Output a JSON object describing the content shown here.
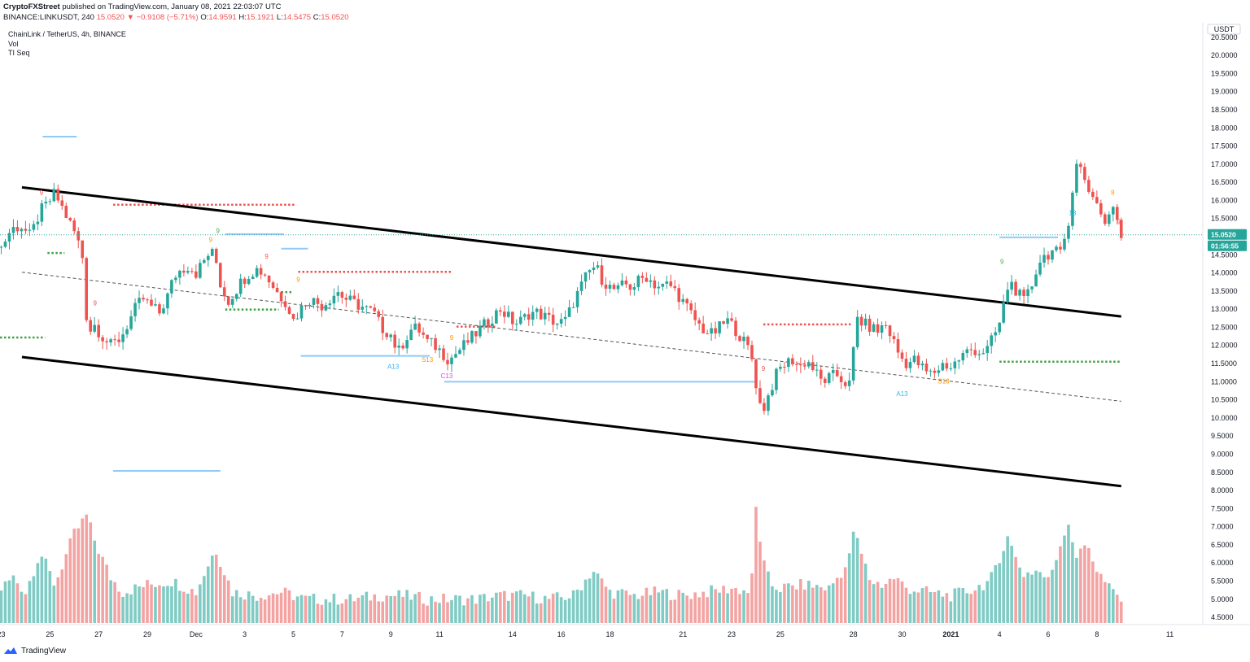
{
  "header": {
    "publisher": "CryptoFXStreet",
    "published_text": "published on TradingView.com, January 08, 2021 22:03:07 UTC",
    "symbol": "BINANCE:LINKUSDT, 240",
    "price": "15.0520",
    "change": "▼ −0.9108 (−5.71%)",
    "open_label": "O:",
    "open": "14.9591",
    "high_label": "H:",
    "high": "15.1921",
    "low_label": "L:",
    "low": "14.5475",
    "close_label": "C:",
    "close": "15.0520"
  },
  "legend": {
    "title": "ChainLink / TetherUS, 4h, BINANCE",
    "vol": "Vol",
    "indicator": "TI Seq"
  },
  "footer": {
    "brand": "TradingView"
  },
  "colors": {
    "up": "#26a69a",
    "down": "#ef5350",
    "vol_up": "#80cbc4",
    "vol_down": "#f4a3a3",
    "price_tag": "#26a69a",
    "axis": "#131722"
  },
  "chart_data": {
    "type": "candlestick",
    "symbol": "LINKUSDT",
    "timeframe": "4h",
    "currency": "USDT",
    "y_axis": {
      "labels": [
        "20.5000",
        "20.0000",
        "19.5000",
        "19.0000",
        "18.5000",
        "18.0000",
        "17.5000",
        "17.0000",
        "16.5000",
        "16.0000",
        "15.5000",
        "15.0000",
        "14.5000",
        "14.0000",
        "13.5000",
        "13.0000",
        "12.5000",
        "12.0000",
        "11.5000",
        "11.0000",
        "10.5000",
        "10.0000",
        "9.5000",
        "9.0000",
        "8.5000",
        "8.0000",
        "7.5000",
        "7.0000",
        "6.5000",
        "6.0000",
        "5.5000",
        "5.0000",
        "4.5000"
      ],
      "range": [
        4.3,
        20.9
      ]
    },
    "x_axis": {
      "ticks": [
        {
          "label": "23",
          "day": 23
        },
        {
          "label": "25",
          "day": 25
        },
        {
          "label": "27",
          "day": 27
        },
        {
          "label": "29",
          "day": 29
        },
        {
          "label": "Dec",
          "day": 31
        },
        {
          "label": "3",
          "day": 33
        },
        {
          "label": "5",
          "day": 35
        },
        {
          "label": "7",
          "day": 37
        },
        {
          "label": "9",
          "day": 39
        },
        {
          "label": "11",
          "day": 41
        },
        {
          "label": "14",
          "day": 44
        },
        {
          "label": "16",
          "day": 46
        },
        {
          "label": "18",
          "day": 48
        },
        {
          "label": "21",
          "day": 51
        },
        {
          "label": "23",
          "day": 53
        },
        {
          "label": "25",
          "day": 55
        },
        {
          "label": "28",
          "day": 58
        },
        {
          "label": "30",
          "day": 60
        },
        {
          "label": "2021",
          "day": 62
        },
        {
          "label": "4",
          "day": 64
        },
        {
          "label": "6",
          "day": 66
        },
        {
          "label": "8",
          "day": 68
        },
        {
          "label": "11",
          "day": 71
        }
      ],
      "day_range": [
        22.95,
        72.35
      ]
    },
    "price_path": [
      [
        23.0,
        14.7
      ],
      [
        23.4,
        15.2
      ],
      [
        23.8,
        15.3
      ],
      [
        24.2,
        15.0
      ],
      [
        24.6,
        15.7
      ],
      [
        24.9,
        15.9
      ],
      [
        25.2,
        16.2
      ],
      [
        25.5,
        15.8
      ],
      [
        25.8,
        15.4
      ],
      [
        26.1,
        15.0
      ],
      [
        26.35,
        14.4
      ],
      [
        26.55,
        12.3
      ],
      [
        26.8,
        12.6
      ],
      [
        27.0,
        12.4
      ],
      [
        27.2,
        12.2
      ],
      [
        27.5,
        12.0
      ],
      [
        27.9,
        12.2
      ],
      [
        28.2,
        12.6
      ],
      [
        28.5,
        13.0
      ],
      [
        28.8,
        13.3
      ],
      [
        29.1,
        13.1
      ],
      [
        29.5,
        12.9
      ],
      [
        29.8,
        13.3
      ],
      [
        30.1,
        13.9
      ],
      [
        30.4,
        14.1
      ],
      [
        30.7,
        14.2
      ],
      [
        31.0,
        14.0
      ],
      [
        31.3,
        14.3
      ],
      [
        31.6,
        14.6
      ],
      [
        31.8,
        14.4
      ],
      [
        32.0,
        13.7
      ],
      [
        32.3,
        13.2
      ],
      [
        32.6,
        13.5
      ],
      [
        32.9,
        13.8
      ],
      [
        33.2,
        14.0
      ],
      [
        33.5,
        14.1
      ],
      [
        33.8,
        14.0
      ],
      [
        34.1,
        13.7
      ],
      [
        34.4,
        13.4
      ],
      [
        34.7,
        13.2
      ],
      [
        35.0,
        12.7
      ],
      [
        35.3,
        13.0
      ],
      [
        35.6,
        13.3
      ],
      [
        35.9,
        13.2
      ],
      [
        36.2,
        13.1
      ],
      [
        36.5,
        13.3
      ],
      [
        36.8,
        13.5
      ],
      [
        37.1,
        13.3
      ],
      [
        37.4,
        13.2
      ],
      [
        37.7,
        13.1
      ],
      [
        38.0,
        13.0
      ],
      [
        38.3,
        12.9
      ],
      [
        38.6,
        12.5
      ],
      [
        39.0,
        12.3
      ],
      [
        39.3,
        11.8
      ],
      [
        39.6,
        12.2
      ],
      [
        39.9,
        12.5
      ],
      [
        40.2,
        12.4
      ],
      [
        40.5,
        12.1
      ],
      [
        40.8,
        12.0
      ],
      [
        41.1,
        11.8
      ],
      [
        41.4,
        11.6
      ],
      [
        41.7,
        11.8
      ],
      [
        42.0,
        12.0
      ],
      [
        42.3,
        12.2
      ],
      [
        42.6,
        12.4
      ],
      [
        42.9,
        12.6
      ],
      [
        43.2,
        12.8
      ],
      [
        43.5,
        13.0
      ],
      [
        43.8,
        12.8
      ],
      [
        44.1,
        12.6
      ],
      [
        44.4,
        12.7
      ],
      [
        44.7,
        12.9
      ],
      [
        45.0,
        12.9
      ],
      [
        45.3,
        12.8
      ],
      [
        45.6,
        12.7
      ],
      [
        45.9,
        12.6
      ],
      [
        46.2,
        12.7
      ],
      [
        46.5,
        13.2
      ],
      [
        46.8,
        13.6
      ],
      [
        47.1,
        14.0
      ],
      [
        47.4,
        14.2
      ],
      [
        47.7,
        13.8
      ],
      [
        48.0,
        13.6
      ],
      [
        48.3,
        13.5
      ],
      [
        48.6,
        13.7
      ],
      [
        48.9,
        13.6
      ],
      [
        49.2,
        13.8
      ],
      [
        49.5,
        13.9
      ],
      [
        49.8,
        13.7
      ],
      [
        50.1,
        13.6
      ],
      [
        50.4,
        13.7
      ],
      [
        50.7,
        13.5
      ],
      [
        51.0,
        13.2
      ],
      [
        51.3,
        12.9
      ],
      [
        51.6,
        12.6
      ],
      [
        51.9,
        12.4
      ],
      [
        52.2,
        12.3
      ],
      [
        52.5,
        12.5
      ],
      [
        52.8,
        12.7
      ],
      [
        53.1,
        12.5
      ],
      [
        53.4,
        12.2
      ],
      [
        53.7,
        11.9
      ],
      [
        53.9,
        11.5
      ],
      [
        54.1,
        10.4
      ],
      [
        54.35,
        10.3
      ],
      [
        54.6,
        10.8
      ],
      [
        54.9,
        11.3
      ],
      [
        55.2,
        11.5
      ],
      [
        55.5,
        11.6
      ],
      [
        55.8,
        11.4
      ],
      [
        56.1,
        11.6
      ],
      [
        56.4,
        11.3
      ],
      [
        56.7,
        11.0
      ],
      [
        57.0,
        11.1
      ],
      [
        57.3,
        11.2
      ],
      [
        57.6,
        11.0
      ],
      [
        57.9,
        10.9
      ],
      [
        58.1,
        12.8
      ],
      [
        58.4,
        12.6
      ],
      [
        58.7,
        12.5
      ],
      [
        59.0,
        12.4
      ],
      [
        59.3,
        12.6
      ],
      [
        59.6,
        12.2
      ],
      [
        59.9,
        11.7
      ],
      [
        60.2,
        11.5
      ],
      [
        60.5,
        11.6
      ],
      [
        60.8,
        11.4
      ],
      [
        61.1,
        11.2
      ],
      [
        61.4,
        11.3
      ],
      [
        61.7,
        11.5
      ],
      [
        62.0,
        11.4
      ],
      [
        62.3,
        11.6
      ],
      [
        62.6,
        11.8
      ],
      [
        62.9,
        11.9
      ],
      [
        63.2,
        11.8
      ],
      [
        63.5,
        11.9
      ],
      [
        63.8,
        12.3
      ],
      [
        64.0,
        12.6
      ],
      [
        64.2,
        13.2
      ],
      [
        64.4,
        13.8
      ],
      [
        64.7,
        13.5
      ],
      [
        65.0,
        13.2
      ],
      [
        65.3,
        13.6
      ],
      [
        65.6,
        14.3
      ],
      [
        65.9,
        14.5
      ],
      [
        66.2,
        14.6
      ],
      [
        66.5,
        14.5
      ],
      [
        66.8,
        15.3
      ],
      [
        67.0,
        16.3
      ],
      [
        67.2,
        17.1
      ],
      [
        67.5,
        16.6
      ],
      [
        67.8,
        16.1
      ],
      [
        68.0,
        16.0
      ],
      [
        68.3,
        15.3
      ],
      [
        68.6,
        15.8
      ],
      [
        68.9,
        15.4
      ],
      [
        69.0,
        15.05
      ]
    ],
    "volume_path": [
      [
        23.0,
        5.3
      ],
      [
        23.5,
        5.6
      ],
      [
        24.0,
        5.2
      ],
      [
        24.6,
        6.3
      ],
      [
        25.2,
        5.4
      ],
      [
        26.0,
        6.8
      ],
      [
        26.5,
        7.3
      ],
      [
        26.9,
        6.5
      ],
      [
        27.5,
        5.6
      ],
      [
        28.0,
        5.2
      ],
      [
        29.0,
        5.4
      ],
      [
        30.0,
        5.5
      ],
      [
        31.0,
        5.2
      ],
      [
        31.8,
        6.4
      ],
      [
        32.5,
        5.2
      ],
      [
        33.5,
        5.1
      ],
      [
        34.5,
        5.2
      ],
      [
        35.5,
        5.0
      ],
      [
        36.5,
        5.0
      ],
      [
        37.5,
        5.0
      ],
      [
        38.5,
        5.1
      ],
      [
        39.5,
        5.1
      ],
      [
        40.5,
        5.0
      ],
      [
        41.5,
        5.0
      ],
      [
        42.5,
        5.0
      ],
      [
        43.5,
        5.1
      ],
      [
        44.5,
        5.1
      ],
      [
        45.5,
        5.0
      ],
      [
        46.5,
        5.1
      ],
      [
        47.3,
        5.8
      ],
      [
        48.0,
        5.2
      ],
      [
        49.0,
        5.1
      ],
      [
        50.0,
        5.2
      ],
      [
        51.0,
        5.1
      ],
      [
        52.0,
        5.2
      ],
      [
        53.0,
        5.3
      ],
      [
        53.8,
        5.2
      ],
      [
        54.0,
        7.5
      ],
      [
        54.3,
        6.0
      ],
      [
        54.6,
        5.4
      ],
      [
        55.0,
        5.3
      ],
      [
        56.0,
        5.4
      ],
      [
        57.0,
        5.3
      ],
      [
        57.8,
        6.0
      ],
      [
        58.0,
        6.9
      ],
      [
        58.3,
        6.3
      ],
      [
        58.7,
        5.5
      ],
      [
        59.2,
        5.4
      ],
      [
        59.7,
        5.6
      ],
      [
        60.2,
        5.3
      ],
      [
        61.0,
        5.2
      ],
      [
        62.0,
        5.1
      ],
      [
        62.6,
        5.2
      ],
      [
        63.0,
        5.3
      ],
      [
        63.6,
        5.5
      ],
      [
        64.0,
        6.0
      ],
      [
        64.3,
        6.9
      ],
      [
        64.6,
        6.2
      ],
      [
        65.0,
        5.7
      ],
      [
        65.6,
        5.8
      ],
      [
        66.0,
        5.5
      ],
      [
        66.5,
        6.5
      ],
      [
        66.8,
        7.2
      ],
      [
        67.2,
        6.1
      ],
      [
        67.6,
        6.6
      ],
      [
        68.0,
        5.8
      ],
      [
        68.5,
        5.3
      ],
      [
        69.0,
        5.0
      ]
    ],
    "trendlines": [
      {
        "style": "solid",
        "from": [
          23.85,
          16.36
        ],
        "to": [
          69.0,
          12.8
        ]
      },
      {
        "style": "solid",
        "from": [
          23.85,
          11.68
        ],
        "to": [
          69.0,
          8.12
        ]
      },
      {
        "style": "dashed",
        "from": [
          23.85,
          14.02
        ],
        "to": [
          69.0,
          10.46
        ]
      }
    ],
    "red_dotted_levels": [
      {
        "from": 27.6,
        "to": 35.1,
        "price": 15.88
      },
      {
        "from": 35.2,
        "to": 41.5,
        "price": 14.03
      },
      {
        "from": 41.7,
        "to": 43.3,
        "price": 12.52
      },
      {
        "from": 54.3,
        "to": 57.9,
        "price": 12.58
      }
    ],
    "green_dotted_levels": [
      {
        "from": 22.95,
        "to": 24.8,
        "price": 12.22
      },
      {
        "from": 24.9,
        "to": 25.6,
        "price": 14.55
      },
      {
        "from": 32.2,
        "to": 34.4,
        "price": 12.99
      },
      {
        "from": 34.5,
        "to": 35.0,
        "price": 13.47
      },
      {
        "from": 64.0,
        "to": 69.0,
        "price": 11.55
      }
    ],
    "blue_levels": [
      {
        "from": 24.7,
        "to": 26.1,
        "price": 17.76
      },
      {
        "from": 32.2,
        "to": 34.6,
        "price": 15.07
      },
      {
        "from": 34.5,
        "to": 35.6,
        "price": 14.67
      },
      {
        "from": 35.3,
        "to": 40.6,
        "price": 11.71
      },
      {
        "from": 41.2,
        "to": 54.0,
        "price": 11.0
      },
      {
        "from": 27.6,
        "to": 32.0,
        "price": 8.54
      },
      {
        "from": 64.0,
        "to": 66.4,
        "price": 14.98
      }
    ],
    "sequential_labels": [
      {
        "text": "9",
        "day": 24.65,
        "price": 16.15,
        "color": "#ef5350"
      },
      {
        "text": "9",
        "day": 26.85,
        "price": 13.1,
        "color": "#ef5350"
      },
      {
        "text": "9",
        "day": 31.6,
        "price": 14.85,
        "color": "#ff9800"
      },
      {
        "text": "9",
        "day": 31.9,
        "price": 15.1,
        "color": "#4caf50"
      },
      {
        "text": "9",
        "day": 33.9,
        "price": 14.4,
        "color": "#ef5350"
      },
      {
        "text": "9",
        "day": 35.2,
        "price": 13.75,
        "color": "#ff9800"
      },
      {
        "text": "A13",
        "day": 39.1,
        "price": 11.35,
        "color": "#29b6f6"
      },
      {
        "text": "S13",
        "day": 40.5,
        "price": 11.55,
        "color": "#ff9800"
      },
      {
        "text": "9",
        "day": 41.5,
        "price": 12.15,
        "color": "#ff9800"
      },
      {
        "text": "C13",
        "day": 41.3,
        "price": 11.1,
        "color": "#e040fb"
      },
      {
        "text": "9",
        "day": 54.3,
        "price": 11.3,
        "color": "#ef5350"
      },
      {
        "text": "A13",
        "day": 60.0,
        "price": 10.6,
        "color": "#29b6f6"
      },
      {
        "text": "S13",
        "day": 61.7,
        "price": 10.95,
        "color": "#ff9800"
      },
      {
        "text": "9",
        "day": 64.1,
        "price": 14.25,
        "color": "#4caf50"
      },
      {
        "text": "13",
        "day": 67.0,
        "price": 15.6,
        "color": "#29b6f6"
      },
      {
        "text": "8",
        "day": 68.65,
        "price": 16.15,
        "color": "#ff9800"
      },
      {
        "text": "9",
        "day": 68.9,
        "price": 15.35,
        "color": "#ef5350"
      }
    ],
    "price_tag": {
      "value": "15.0520",
      "timer": "01:56:55",
      "price": 15.052
    }
  }
}
